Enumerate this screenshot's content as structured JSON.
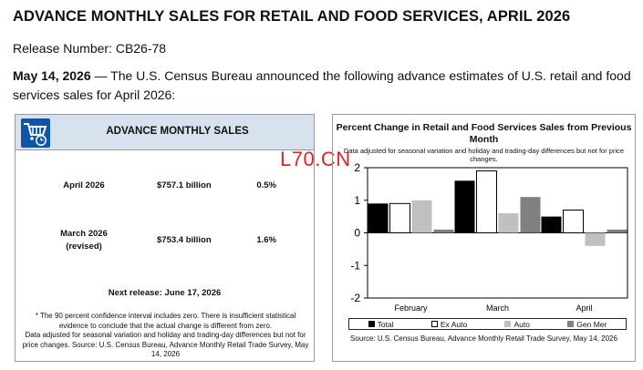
{
  "header": {
    "title": "ADVANCE MONTHLY SALES FOR RETAIL AND FOOD SERVICES, APRIL 2026",
    "release_number": "Release Number: CB26-78",
    "intro_date": "May 14, 2026",
    "intro_text": " — The U.S. Census Bureau announced the following advance estimates of U.S. retail and food services sales for April 2026:"
  },
  "sales_panel": {
    "title": "ADVANCE MONTHLY SALES",
    "logo_icon": "shopping-cart-clock-icon",
    "rows": [
      {
        "label": "April 2026",
        "sublabel": "",
        "value": "$757.1 billion",
        "pct": "0.5%"
      },
      {
        "label": "March 2026",
        "sublabel": "(revised)",
        "value": "$753.4 billion",
        "pct": "1.6%"
      }
    ],
    "next_release": "Next release: June 17, 2026",
    "footnote_1": "* The 90 percent confidence interval includes zero. There is insufficient statistical evidence to conclude that the actual change is different from zero.",
    "footnote_2": "Data adjusted for seasonal variation and holiday and trading-day differences but not for price changes. Source: U.S. Census Bureau, Advance Monthly Retail Trade Survey, May 14, 2026"
  },
  "watermark": "L70.CN",
  "chart_data": {
    "type": "bar",
    "title": "Percent Change in Retail and Food Services Sales from Previous Month",
    "subtitle": "Data adjusted for seasonal variation and holiday and trading-day differences but not for price changes.",
    "categories": [
      "February",
      "March",
      "April"
    ],
    "series": [
      {
        "name": "Total",
        "color": "#000000",
        "values": [
          0.9,
          1.6,
          0.5
        ]
      },
      {
        "name": "Ex Auto",
        "color": "#ffffff",
        "values": [
          0.9,
          1.9,
          0.7
        ]
      },
      {
        "name": "Auto",
        "color": "#c0c0c0",
        "values": [
          1.0,
          0.6,
          -0.4
        ]
      },
      {
        "name": "Gen Mer",
        "color": "#808080",
        "values": [
          0.1,
          1.1,
          0.1
        ]
      }
    ],
    "yticks": [
      "2",
      "1",
      "0",
      "-1",
      "-2"
    ],
    "ylim": [
      -2,
      2
    ],
    "grid": false,
    "legend": "bottom",
    "source": "Source: U.S. Census Bureau, Advance Monthly Retail Trade Survey, May 14, 2026"
  }
}
